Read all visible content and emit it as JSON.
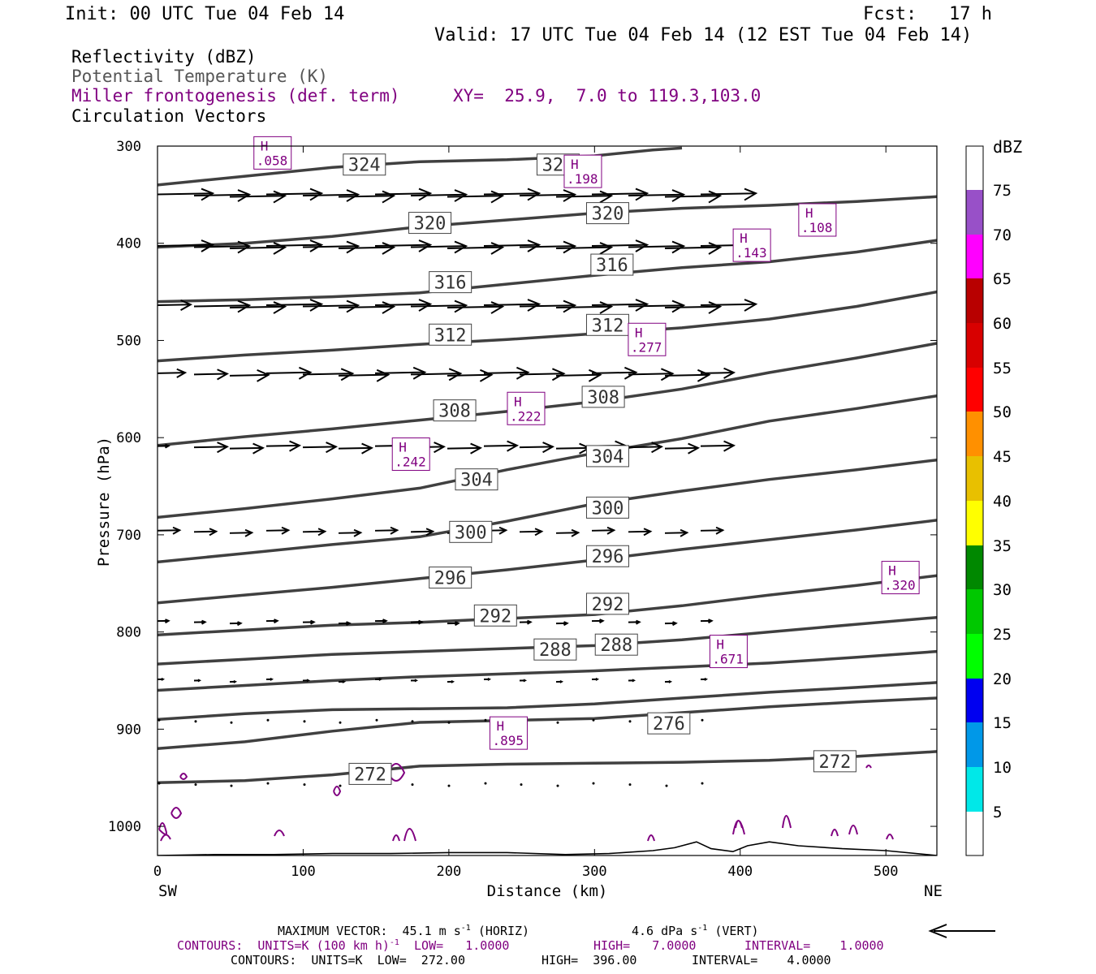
{
  "header": {
    "init": "Init: 00 UTC Tue 04 Feb 14",
    "fcst": "Fcst:   17 h",
    "valid": "Valid: 17 UTC Tue 04 Feb 14 (12 EST Tue 04 Feb 14)"
  },
  "legend": {
    "reflectivity": "Reflectivity (dBZ)",
    "theta": "Potential Temperature (K)",
    "miller": "Miller frontogenesis (def. term)",
    "xy": "XY=  25.9,  7.0 to 119.3,103.0",
    "vectors": "Circulation Vectors"
  },
  "footer": {
    "maxvec_a": "MAXIMUM VECTOR:  45.1 m s",
    "maxvec_exp1": "-1",
    "maxvec_b": " (HORIZ)",
    "maxvec_c": "4.6 dPa s",
    "maxvec_exp2": "-1",
    "maxvec_d": " (VERT)",
    "cont1_a": "CONTOURS:  UNITS=K (100 km h)",
    "cont1_exp": "-1",
    "cont1_b": "  LOW=   1.0000",
    "cont1_c": "HIGH=   7.0000",
    "cont1_d": "INTERVAL=    1.0000",
    "cont2_a": "CONTOURS:  UNITS=K  LOW=  272.00",
    "cont2_b": "HIGH=  396.00",
    "cont2_c": "INTERVAL=    4.0000"
  },
  "colors": {
    "theta": "#404040",
    "miller": "#800080",
    "vector": "#000000",
    "terrain": "#000000"
  },
  "chart_data": {
    "type": "cross-section",
    "xlabel": "Distance (km)",
    "ylabel": "Pressure (hPa)",
    "left_end": "SW",
    "right_end": "NE",
    "xlim": [
      0,
      535
    ],
    "ylim": [
      1030,
      300
    ],
    "x_ticks": [
      0,
      100,
      200,
      300,
      400,
      500
    ],
    "y_ticks": [
      300,
      400,
      500,
      600,
      700,
      800,
      900,
      1000
    ],
    "colorbar": {
      "unit": "dBZ",
      "labels": [
        "5",
        "10",
        "15",
        "20",
        "25",
        "30",
        "35",
        "40",
        "45",
        "50",
        "55",
        "60",
        "65",
        "70",
        "75"
      ],
      "colors": [
        "#ffffff",
        "#00e8e8",
        "#0098e8",
        "#0000f0",
        "#00ff00",
        "#00c800",
        "#008800",
        "#ffff00",
        "#e8c000",
        "#ff9000",
        "#ff0000",
        "#d80000",
        "#b80000",
        "#ff00ff",
        "#9850c8",
        "#ffffff"
      ]
    },
    "isentropes": [
      {
        "theta": 272,
        "points": [
          [
            0,
            955
          ],
          [
            60,
            953
          ],
          [
            120,
            947
          ],
          [
            180,
            938
          ],
          [
            240,
            936
          ],
          [
            300,
            935
          ],
          [
            360,
            934
          ],
          [
            420,
            932
          ],
          [
            480,
            928
          ],
          [
            535,
            923
          ]
        ]
      },
      {
        "theta": 276,
        "points": [
          [
            0,
            920
          ],
          [
            60,
            913
          ],
          [
            120,
            902
          ],
          [
            180,
            893
          ],
          [
            240,
            891
          ],
          [
            300,
            889
          ],
          [
            360,
            883
          ],
          [
            420,
            877
          ],
          [
            480,
            872
          ],
          [
            535,
            868
          ]
        ]
      },
      {
        "theta": 280,
        "points": [
          [
            0,
            890
          ],
          [
            60,
            884
          ],
          [
            120,
            880
          ],
          [
            180,
            879
          ],
          [
            240,
            878
          ],
          [
            300,
            874
          ],
          [
            360,
            868
          ],
          [
            420,
            862
          ],
          [
            480,
            857
          ],
          [
            535,
            852
          ]
        ]
      },
      {
        "theta": 284,
        "points": [
          [
            0,
            860
          ],
          [
            60,
            855
          ],
          [
            120,
            850
          ],
          [
            180,
            846
          ],
          [
            240,
            843
          ],
          [
            300,
            840
          ],
          [
            360,
            836
          ],
          [
            420,
            832
          ],
          [
            480,
            826
          ],
          [
            535,
            820
          ]
        ]
      },
      {
        "theta": 288,
        "points": [
          [
            0,
            833
          ],
          [
            60,
            828
          ],
          [
            120,
            823
          ],
          [
            180,
            820
          ],
          [
            240,
            817
          ],
          [
            300,
            814
          ],
          [
            360,
            808
          ],
          [
            420,
            800
          ],
          [
            480,
            792
          ],
          [
            535,
            785
          ]
        ]
      },
      {
        "theta": 292,
        "points": [
          [
            0,
            803
          ],
          [
            60,
            798
          ],
          [
            120,
            793
          ],
          [
            180,
            790
          ],
          [
            240,
            786
          ],
          [
            300,
            782
          ],
          [
            360,
            773
          ],
          [
            420,
            762
          ],
          [
            480,
            752
          ],
          [
            535,
            742
          ]
        ]
      },
      {
        "theta": 296,
        "points": [
          [
            0,
            770
          ],
          [
            60,
            762
          ],
          [
            120,
            754
          ],
          [
            180,
            745
          ],
          [
            240,
            736
          ],
          [
            300,
            726
          ],
          [
            360,
            715
          ],
          [
            420,
            705
          ],
          [
            480,
            695
          ],
          [
            535,
            685
          ]
        ]
      },
      {
        "theta": 300,
        "points": [
          [
            0,
            728
          ],
          [
            60,
            719
          ],
          [
            120,
            710
          ],
          [
            180,
            702
          ],
          [
            240,
            686
          ],
          [
            300,
            668
          ],
          [
            360,
            655
          ],
          [
            420,
            643
          ],
          [
            480,
            633
          ],
          [
            535,
            623
          ]
        ]
      },
      {
        "theta": 304,
        "points": [
          [
            0,
            682
          ],
          [
            60,
            673
          ],
          [
            120,
            663
          ],
          [
            180,
            652
          ],
          [
            240,
            633
          ],
          [
            300,
            616
          ],
          [
            360,
            601
          ],
          [
            420,
            583
          ],
          [
            480,
            570
          ],
          [
            535,
            557
          ]
        ]
      },
      {
        "theta": 308,
        "points": [
          [
            0,
            608
          ],
          [
            60,
            599
          ],
          [
            120,
            591
          ],
          [
            180,
            582
          ],
          [
            240,
            573
          ],
          [
            300,
            563
          ],
          [
            360,
            550
          ],
          [
            420,
            533
          ],
          [
            480,
            518
          ],
          [
            535,
            503
          ]
        ]
      },
      {
        "theta": 312,
        "points": [
          [
            0,
            521
          ],
          [
            60,
            515
          ],
          [
            120,
            510
          ],
          [
            180,
            504
          ],
          [
            240,
            499
          ],
          [
            300,
            493
          ],
          [
            360,
            487
          ],
          [
            420,
            478
          ],
          [
            480,
            465
          ],
          [
            535,
            450
          ]
        ]
      },
      {
        "theta": 316,
        "points": [
          [
            0,
            460
          ],
          [
            60,
            458
          ],
          [
            120,
            455
          ],
          [
            180,
            451
          ],
          [
            240,
            442
          ],
          [
            300,
            433
          ],
          [
            360,
            425
          ],
          [
            420,
            419
          ],
          [
            480,
            409
          ],
          [
            535,
            397
          ]
        ]
      },
      {
        "theta": 320,
        "points": [
          [
            0,
            404
          ],
          [
            60,
            400
          ],
          [
            120,
            393
          ],
          [
            180,
            383
          ],
          [
            240,
            376
          ],
          [
            300,
            369
          ],
          [
            360,
            364
          ],
          [
            420,
            361
          ],
          [
            480,
            357
          ],
          [
            535,
            352
          ]
        ]
      },
      {
        "theta": 324,
        "points": [
          [
            0,
            340
          ],
          [
            60,
            331
          ],
          [
            120,
            322
          ],
          [
            180,
            316
          ],
          [
            240,
            314
          ],
          [
            300,
            310
          ],
          [
            340,
            304
          ],
          [
            360,
            302
          ]
        ]
      }
    ],
    "isentrope_labels": [
      {
        "text": "324",
        "x": 142,
        "y": 319
      },
      {
        "text": "324",
        "x": 275,
        "y": 319
      },
      {
        "text": "320",
        "x": 187,
        "y": 379
      },
      {
        "text": "320",
        "x": 309,
        "y": 369
      },
      {
        "text": "316",
        "x": 201,
        "y": 440
      },
      {
        "text": "316",
        "x": 312,
        "y": 422
      },
      {
        "text": "312",
        "x": 201,
        "y": 494
      },
      {
        "text": "312",
        "x": 309,
        "y": 484
      },
      {
        "text": "308",
        "x": 204,
        "y": 572
      },
      {
        "text": "308",
        "x": 306,
        "y": 558
      },
      {
        "text": "304",
        "x": 219,
        "y": 643
      },
      {
        "text": "304",
        "x": 309,
        "y": 619
      },
      {
        "text": "300",
        "x": 215,
        "y": 697
      },
      {
        "text": "300",
        "x": 309,
        "y": 672
      },
      {
        "text": "296",
        "x": 201,
        "y": 744
      },
      {
        "text": "296",
        "x": 309,
        "y": 722
      },
      {
        "text": "292",
        "x": 232,
        "y": 783
      },
      {
        "text": "292",
        "x": 309,
        "y": 771
      },
      {
        "text": "288",
        "x": 273,
        "y": 818
      },
      {
        "text": "288",
        "x": 315,
        "y": 813
      },
      {
        "text": "276",
        "x": 351,
        "y": 894
      },
      {
        "text": "272",
        "x": 146,
        "y": 946
      },
      {
        "text": "272",
        "x": 465,
        "y": 933
      }
    ],
    "frontogenesis_highs": [
      {
        "label": "H",
        "value": ".058",
        "x": 79,
        "y": 307
      },
      {
        "label": "H",
        "value": ".198",
        "x": 292,
        "y": 326
      },
      {
        "label": "H",
        "value": ".108",
        "x": 453,
        "y": 376
      },
      {
        "label": "H",
        "value": ".143",
        "x": 408,
        "y": 402
      },
      {
        "label": "H",
        "value": ".277",
        "x": 336,
        "y": 499
      },
      {
        "label": "H",
        "value": ".222",
        "x": 253,
        "y": 570
      },
      {
        "label": "H",
        "value": ".242",
        "x": 174,
        "y": 617
      },
      {
        "label": "H",
        "value": ".320",
        "x": 510,
        "y": 744
      },
      {
        "label": "H",
        "value": ".671",
        "x": 392,
        "y": 820
      },
      {
        "label": "H",
        "value": ".895",
        "x": 241,
        "y": 904
      }
    ],
    "vector_rows": [
      {
        "p": 351,
        "u": [
          1.0,
          1.0,
          1.0,
          1.0,
          1.0,
          1.0,
          1.0,
          1.0,
          1.0,
          1.0,
          1.0,
          1.0,
          1.0,
          1.0,
          1.0,
          1.0
        ]
      },
      {
        "p": 404,
        "u": [
          1.0,
          1.0,
          1.0,
          1.0,
          1.0,
          1.0,
          1.0,
          1.0,
          1.0,
          1.0,
          1.0,
          1.0,
          1.0,
          1.0,
          1.0,
          1.0
        ]
      },
      {
        "p": 465,
        "u": [
          0.6,
          1.0,
          1.0,
          1.0,
          1.0,
          1.0,
          1.0,
          1.0,
          1.0,
          1.0,
          1.0,
          1.0,
          1.0,
          1.0,
          1.0,
          1.0
        ]
      },
      {
        "p": 535,
        "u": [
          0.5,
          0.6,
          0.7,
          0.8,
          0.9,
          0.9,
          0.9,
          0.9,
          0.8,
          0.8,
          0.8,
          0.8,
          0.8,
          0.8,
          0.8,
          0.6
        ]
      },
      {
        "p": 610,
        "u": [
          0.2,
          0.6,
          0.6,
          0.6,
          0.6,
          0.6,
          0.6,
          0.6,
          0.6,
          0.6,
          0.6,
          0.6,
          0.6,
          0.6,
          0.6,
          0.6
        ]
      },
      {
        "p": 697,
        "u": [
          0.4,
          0.4,
          0.4,
          0.4,
          0.4,
          0.4,
          0.4,
          0.4,
          0.4,
          0.4,
          0.4,
          0.4,
          0.4,
          0.4,
          0.4,
          0.4
        ]
      },
      {
        "p": 790,
        "u": [
          0.2,
          0.2,
          0.2,
          0.2,
          0.2,
          0.2,
          0.2,
          0.2,
          0.2,
          0.2,
          0.2,
          0.2,
          0.2,
          0.2,
          0.2,
          0.2
        ]
      },
      {
        "p": 850,
        "u": [
          0.1,
          0.1,
          0.1,
          0.1,
          0.1,
          0.1,
          0.1,
          0.1,
          0.1,
          0.1,
          0.1,
          0.1,
          0.1,
          0.1,
          0.1,
          0.1
        ]
      },
      {
        "p": 892,
        "u": [
          0.05,
          0.05,
          0.05,
          0.05,
          0.05,
          0.05,
          0.05,
          0.05,
          0.05,
          0.05,
          0.05,
          0.05,
          0.05,
          0.05,
          0.05,
          0.05
        ]
      },
      {
        "p": 957,
        "u": [
          0.05,
          0.05,
          0.05,
          0.05,
          0.05,
          0.05,
          0.05,
          0.05,
          0.05,
          0.05,
          0.05,
          0.05,
          0.05,
          0.05,
          0.05,
          0.05
        ]
      }
    ],
    "terrain": [
      [
        0,
        1030
      ],
      [
        40,
        1029
      ],
      [
        80,
        1029
      ],
      [
        120,
        1028
      ],
      [
        160,
        1028
      ],
      [
        200,
        1027
      ],
      [
        240,
        1027
      ],
      [
        280,
        1029
      ],
      [
        310,
        1028
      ],
      [
        340,
        1025
      ],
      [
        355,
        1022
      ],
      [
        370,
        1016
      ],
      [
        380,
        1023
      ],
      [
        395,
        1026
      ],
      [
        405,
        1020
      ],
      [
        420,
        1016
      ],
      [
        440,
        1020
      ],
      [
        470,
        1023
      ],
      [
        500,
        1025
      ],
      [
        535,
        1030
      ]
    ],
    "max_vector": {
      "horiz_m_s": 45.1,
      "vert_dPa_s": 4.6
    }
  }
}
